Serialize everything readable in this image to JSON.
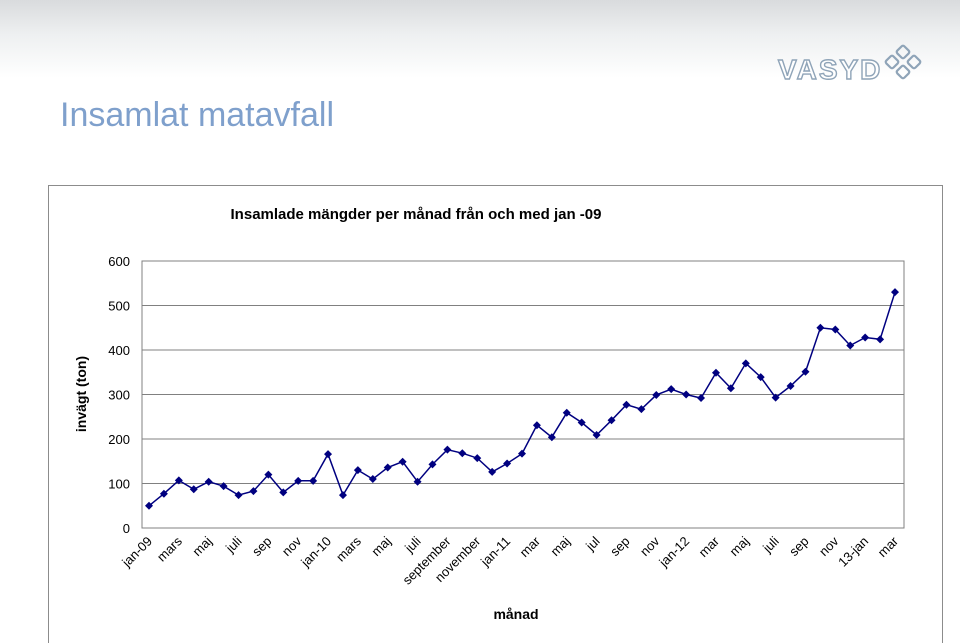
{
  "slide": {
    "title": "Insamlat matavfall",
    "logo_text": "VASYD"
  },
  "colors": {
    "title": "#7fa0cc",
    "series": "#000080",
    "grid": "#808080",
    "plot_bg": "#ffffff"
  },
  "chart_data": {
    "type": "line",
    "title": "Insamlade mängder per månad från och med jan -09",
    "xlabel": "månad",
    "ylabel": "invägt (ton)",
    "ylim": [
      0,
      600
    ],
    "yticks": [
      0,
      100,
      200,
      300,
      400,
      500,
      600
    ],
    "grid": true,
    "legend": "none",
    "x_labels": [
      {
        "index": 0,
        "text": "jan-09"
      },
      {
        "index": 2,
        "text": "mars"
      },
      {
        "index": 4,
        "text": "maj"
      },
      {
        "index": 6,
        "text": "juli"
      },
      {
        "index": 8,
        "text": "sep"
      },
      {
        "index": 10,
        "text": "nov"
      },
      {
        "index": 12,
        "text": "jan-10"
      },
      {
        "index": 14,
        "text": "mars"
      },
      {
        "index": 16,
        "text": "maj"
      },
      {
        "index": 18,
        "text": "juli"
      },
      {
        "index": 20,
        "text": "september"
      },
      {
        "index": 22,
        "text": "november"
      },
      {
        "index": 24,
        "text": "jan-11"
      },
      {
        "index": 26,
        "text": "mar"
      },
      {
        "index": 28,
        "text": "maj"
      },
      {
        "index": 30,
        "text": "jul"
      },
      {
        "index": 32,
        "text": "sep"
      },
      {
        "index": 34,
        "text": "nov"
      },
      {
        "index": 36,
        "text": "jan-12"
      },
      {
        "index": 38,
        "text": "mar"
      },
      {
        "index": 40,
        "text": "maj"
      },
      {
        "index": 42,
        "text": "juli"
      },
      {
        "index": 44,
        "text": "sep"
      },
      {
        "index": 46,
        "text": "nov"
      },
      {
        "index": 48,
        "text": "13-jan"
      },
      {
        "index": 50,
        "text": "mar"
      }
    ],
    "series": [
      {
        "values": [
          50,
          77,
          107,
          87,
          104,
          94,
          74,
          83,
          120,
          80,
          106,
          106,
          166,
          74,
          130,
          110,
          136,
          149,
          104,
          143,
          176,
          168,
          157,
          126,
          145,
          167,
          231,
          204,
          259,
          237,
          209,
          242,
          277,
          267,
          299,
          312,
          300,
          292,
          349,
          314,
          370,
          339,
          293,
          319,
          351,
          450,
          446,
          410,
          428,
          424,
          530
        ]
      }
    ]
  }
}
